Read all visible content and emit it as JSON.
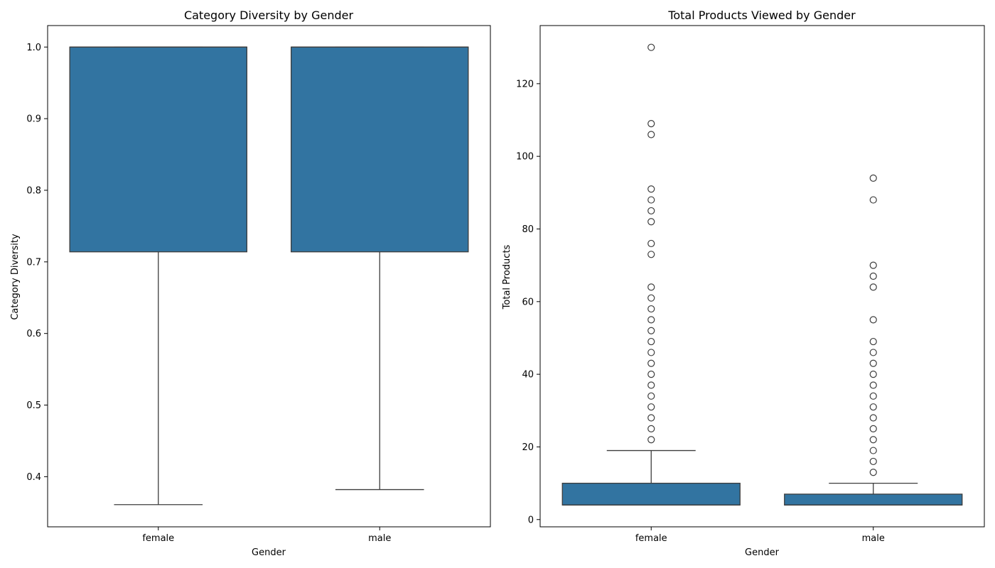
{
  "colors": {
    "box_fill": "#3274a1",
    "line": "#3d3d3d"
  },
  "chart_data": [
    {
      "type": "box",
      "title": "Category Diversity by Gender",
      "xlabel": "Gender",
      "ylabel": "Category Diversity",
      "categories": [
        "female",
        "male"
      ],
      "ylim": [
        0.33,
        1.03
      ],
      "yticks": [
        0.4,
        0.5,
        0.6,
        0.7,
        0.8,
        0.9,
        1.0
      ],
      "ytick_labels": [
        "0.4",
        "0.5",
        "0.6",
        "0.7",
        "0.8",
        "0.9",
        "1.0"
      ],
      "boxes": [
        {
          "category": "female",
          "whisker_low": 0.361,
          "q1": 0.714,
          "median": 1.0,
          "q3": 1.0,
          "whisker_high": 1.0,
          "fliers": []
        },
        {
          "category": "male",
          "whisker_low": 0.382,
          "q1": 0.714,
          "median": 1.0,
          "q3": 1.0,
          "whisker_high": 1.0,
          "fliers": []
        }
      ]
    },
    {
      "type": "box",
      "title": "Total Products Viewed by Gender",
      "xlabel": "Gender",
      "ylabel": "Total Products",
      "categories": [
        "female",
        "male"
      ],
      "ylim": [
        -2,
        136
      ],
      "yticks": [
        0,
        20,
        40,
        60,
        80,
        100,
        120
      ],
      "ytick_labels": [
        "0",
        "20",
        "40",
        "60",
        "80",
        "100",
        "120"
      ],
      "boxes": [
        {
          "category": "female",
          "whisker_low": 4,
          "q1": 4,
          "median": 4,
          "q3": 10,
          "whisker_high": 19,
          "fliers": [
            22,
            25,
            28,
            31,
            34,
            37,
            40,
            43,
            46,
            49,
            52,
            55,
            58,
            61,
            64,
            73,
            76,
            82,
            85,
            88,
            91,
            106,
            109,
            130
          ]
        },
        {
          "category": "male",
          "whisker_low": 4,
          "q1": 4,
          "median": 4,
          "q3": 7,
          "whisker_high": 10,
          "fliers": [
            13,
            16,
            19,
            22,
            25,
            28,
            31,
            34,
            37,
            40,
            43,
            46,
            49,
            55,
            64,
            67,
            70,
            88,
            94
          ]
        }
      ]
    }
  ]
}
